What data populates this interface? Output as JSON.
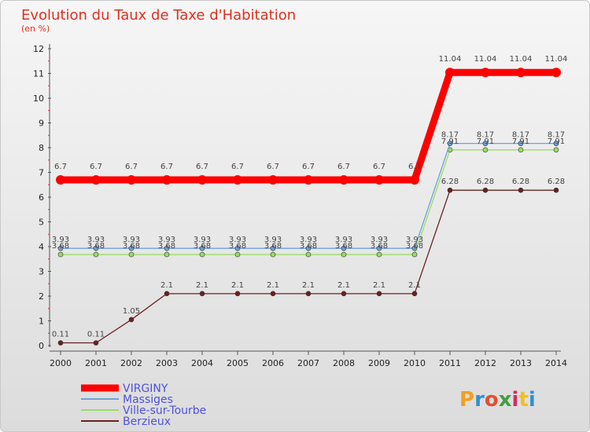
{
  "chart_data": {
    "type": "line",
    "title": "Evolution du Taux de Taxe d'Habitation",
    "subtitle": "(en %)",
    "xlabel": "",
    "ylabel": "(en %)",
    "ylim": [
      0,
      12
    ],
    "yticks": [
      "0",
      "1",
      "2",
      "3",
      "4",
      "5",
      "6",
      "7",
      "8",
      "9",
      "10",
      "11",
      "12"
    ],
    "categories": [
      "2000",
      "2001",
      "2002",
      "2003",
      "2004",
      "2005",
      "2006",
      "2007",
      "2008",
      "2009",
      "2010",
      "2011",
      "2012",
      "2013",
      "2014"
    ],
    "grid": false,
    "legend_position": "bottom-left",
    "series": [
      {
        "name": "VIRGINY",
        "color": "#ff0000",
        "values": [
          6.7,
          6.7,
          6.7,
          6.7,
          6.7,
          6.7,
          6.7,
          6.7,
          6.7,
          6.7,
          6.7,
          11.04,
          11.04,
          11.04,
          11.04
        ],
        "labels": [
          "6.7",
          "6.7",
          "6.7",
          "6.7",
          "6.7",
          "6.7",
          "6.7",
          "6.7",
          "6.7",
          "6.7",
          "6.7",
          "11.04",
          "11.04",
          "11.04",
          "11.04"
        ]
      },
      {
        "name": "Massiges",
        "color": "#6fa0d8",
        "values": [
          3.93,
          3.93,
          3.93,
          3.93,
          3.93,
          3.93,
          3.93,
          3.93,
          3.93,
          3.93,
          3.93,
          8.17,
          8.17,
          8.17,
          8.17
        ],
        "labels": [
          "3.93",
          "3.93",
          "3.93",
          "3.93",
          "3.93",
          "3.93",
          "3.93",
          "3.93",
          "3.93",
          "3.93",
          "3.93",
          "8.17",
          "8.17",
          "8.17",
          "8.17"
        ]
      },
      {
        "name": "Ville-sur-Tourbe",
        "color": "#99dd66",
        "values": [
          3.68,
          3.68,
          3.68,
          3.68,
          3.68,
          3.68,
          3.68,
          3.68,
          3.68,
          3.68,
          3.68,
          7.91,
          7.91,
          7.91,
          7.91
        ],
        "labels": [
          "3.68",
          "3.68",
          "3.68",
          "3.68",
          "3.68",
          "3.68",
          "3.68",
          "3.68",
          "3.68",
          "3.68",
          "3.68",
          "7.91",
          "7.91",
          "7.91",
          "7.91"
        ]
      },
      {
        "name": "Berzieux",
        "color": "#6b2020",
        "values": [
          0.11,
          0.11,
          1.05,
          2.1,
          2.1,
          2.1,
          2.1,
          2.1,
          2.1,
          2.1,
          2.1,
          6.28,
          6.28,
          6.28,
          6.28
        ],
        "labels": [
          "0.11",
          "0.11",
          "1.05",
          "2.1",
          "2.1",
          "2.1",
          "2.1",
          "2.1",
          "2.1",
          "2.1",
          "2.1",
          "6.28",
          "6.28",
          "6.28",
          "6.28"
        ]
      }
    ]
  },
  "logo": {
    "text": "Proxiti",
    "colors": [
      "#f0a020",
      "#3090d0",
      "#e05030",
      "#40a040",
      "#d03060",
      "#f0c020",
      "#3090d0"
    ]
  }
}
